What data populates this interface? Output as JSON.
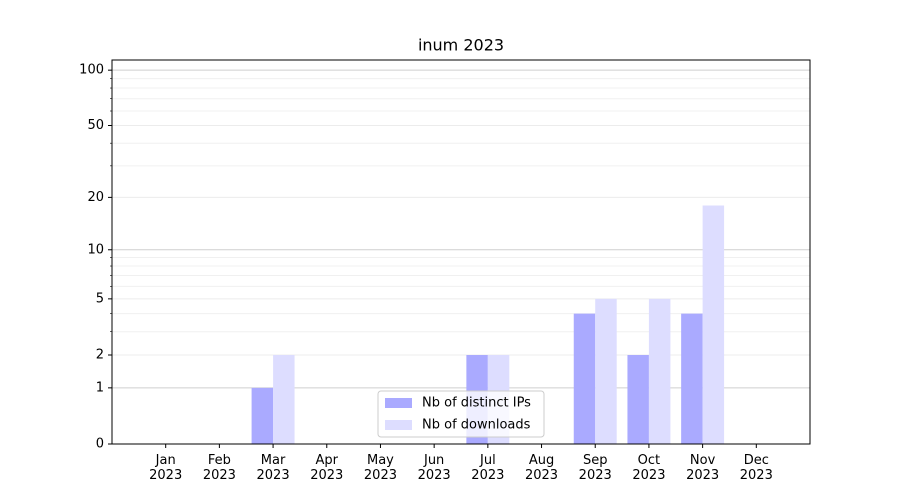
{
  "chart_data": {
    "type": "bar",
    "title": "inum 2023",
    "categories": [
      "Jan\n2023",
      "Feb\n2023",
      "Mar\n2023",
      "Apr\n2023",
      "May\n2023",
      "Jun\n2023",
      "Jul\n2023",
      "Aug\n2023",
      "Sep\n2023",
      "Oct\n2023",
      "Nov\n2023",
      "Dec\n2023"
    ],
    "series": [
      {
        "name": "Nb of distinct IPs",
        "color": "#aaaaff",
        "values": [
          0,
          0,
          1,
          0,
          0,
          0,
          2,
          0,
          4,
          2,
          4,
          0
        ]
      },
      {
        "name": "Nb of downloads",
        "color": "#ddddff",
        "values": [
          0,
          0,
          2,
          0,
          0,
          0,
          2,
          0,
          5,
          5,
          18,
          0
        ]
      }
    ],
    "yscale": "log1p",
    "ylim": [
      0,
      113.5
    ],
    "yticks": [
      0,
      1,
      2,
      5,
      10,
      20,
      50,
      100
    ],
    "minor_yticks": [
      3,
      4,
      6,
      7,
      8,
      9,
      30,
      40,
      60,
      70,
      80,
      90
    ],
    "grid": true,
    "legend": "lower center"
  }
}
